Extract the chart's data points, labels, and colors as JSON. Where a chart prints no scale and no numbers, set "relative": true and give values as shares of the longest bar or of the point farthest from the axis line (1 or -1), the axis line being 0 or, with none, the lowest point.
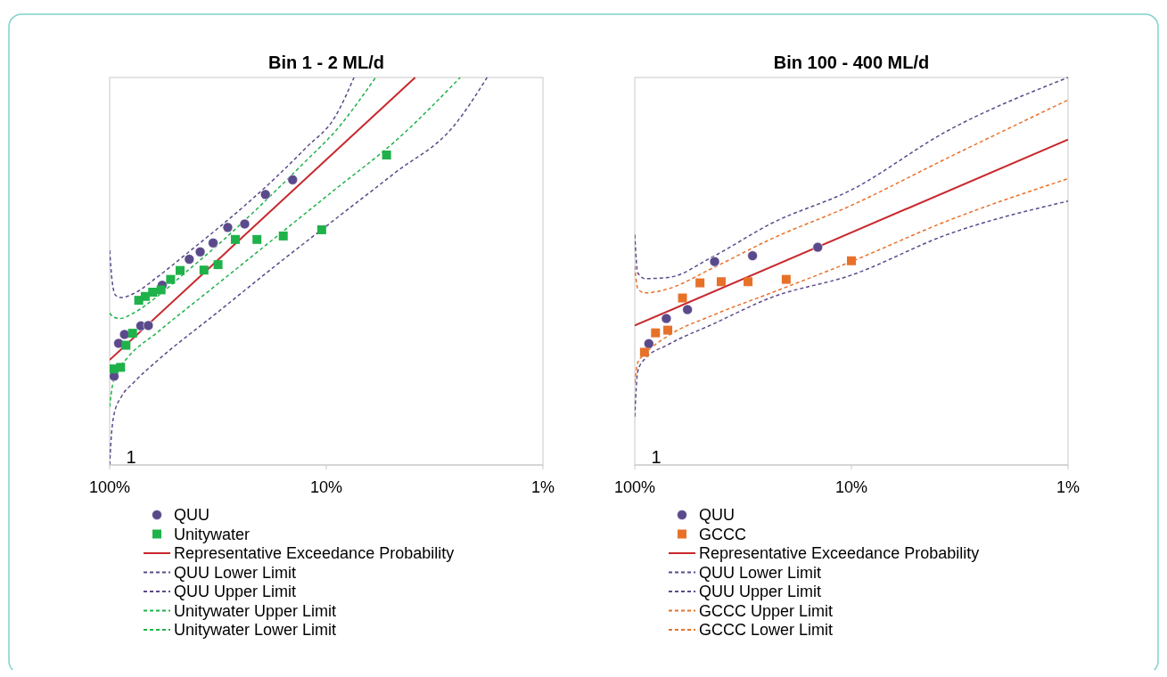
{
  "chart_data": [
    {
      "type": "scatter",
      "title": "Bin 1 - 2 ML/d",
      "relative": true,
      "log": "x",
      "xlim": [
        100,
        1
      ],
      "xticks": [
        {
          "value": 100,
          "label": "100%"
        },
        {
          "value": 10,
          "label": "10%"
        },
        {
          "value": 1,
          "label": "1%"
        }
      ],
      "legend": "bottom",
      "grid": false,
      "annotations": [
        "1"
      ],
      "series": [
        {
          "name": "QUU",
          "type": "scatter",
          "marker": "circle",
          "color": "#5b4a8b",
          "x": [
            95.4,
            90.9,
            85.4,
            71.8,
            66.3,
            57.2,
            42.9,
            38.2,
            33.3,
            28.5,
            23.8,
            19.1,
            14.3
          ],
          "values": [
            0.229,
            0.314,
            0.337,
            0.359,
            0.36,
            0.464,
            0.531,
            0.55,
            0.573,
            0.613,
            0.622,
            0.698,
            0.736
          ]
        },
        {
          "name": "Unitywater",
          "type": "scatter",
          "marker": "square",
          "color": "#1fb24a",
          "x": [
            95.4,
            89.0,
            84.1,
            78.4,
            73.4,
            68.5,
            63.3,
            57.9,
            52.3,
            47.3,
            36.7,
            31.6,
            26.3,
            20.9,
            15.8,
            10.5,
            5.27
          ],
          "values": [
            0.248,
            0.252,
            0.309,
            0.34,
            0.425,
            0.435,
            0.446,
            0.452,
            0.479,
            0.502,
            0.503,
            0.517,
            0.582,
            0.582,
            0.591,
            0.607,
            0.8
          ]
        },
        {
          "name": "Representative Exceedance Probability",
          "type": "line",
          "line_style": "solid",
          "marker": "none",
          "color": "#c8282d",
          "x": [
            100,
            3.89
          ],
          "values": [
            0.271,
            1
          ]
        },
        {
          "name": "QUU Lower Limit",
          "type": "line",
          "line_style": "dashed",
          "marker": "none",
          "color": "#5b4a8b",
          "x": [
            100,
            98.4,
            95.4,
            88.1,
            77.7,
            60.3,
            32.1,
            17.1,
            9.07,
            4.82,
            2.56,
            1.81
          ],
          "values": [
            0,
            0.069,
            0.131,
            0.177,
            0.212,
            0.269,
            0.392,
            0.515,
            0.635,
            0.754,
            0.877,
            1
          ]
        },
        {
          "name": "QUU Upper Limit",
          "type": "line",
          "line_style": "dashed",
          "marker": "none",
          "color": "#5b4a8b",
          "x": [
            100,
            97.5,
            93.9,
            88.1,
            77.7,
            60.3,
            44.0,
            32.1,
            23.4,
            17.1,
            12.4,
            9.07,
            7.45
          ],
          "values": [
            0.554,
            0.477,
            0.438,
            0.432,
            0.442,
            0.485,
            0.546,
            0.608,
            0.673,
            0.742,
            0.819,
            0.9,
            1
          ]
        },
        {
          "name": "Unitywater Upper Limit",
          "type": "line",
          "line_style": "dashed",
          "marker": "none",
          "color": "#1fb24a",
          "x": [
            100,
            95.4,
            89.5,
            77.7,
            60.3,
            44.0,
            32.1,
            23.4,
            17.1,
            12.4,
            9.07,
            5.92
          ],
          "values": [
            0.392,
            0.381,
            0.378,
            0.392,
            0.435,
            0.5,
            0.565,
            0.635,
            0.708,
            0.785,
            0.862,
            1
          ]
        },
        {
          "name": "Unitywater Lower Limit",
          "type": "line",
          "line_style": "dashed",
          "marker": "none",
          "color": "#1fb24a",
          "x": [
            100,
            96.9,
            90.9,
            82.7,
            60.3,
            32.1,
            17.1,
            9.07,
            4.82,
            2.41
          ],
          "values": [
            0.15,
            0.208,
            0.246,
            0.277,
            0.342,
            0.465,
            0.588,
            0.712,
            0.835,
            1
          ]
        }
      ]
    },
    {
      "type": "scatter",
      "title": "Bin 100 - 400 ML/d",
      "relative": true,
      "log": "x",
      "xlim": [
        100,
        1
      ],
      "xticks": [
        {
          "value": 100,
          "label": "100%"
        },
        {
          "value": 10,
          "label": "10%"
        },
        {
          "value": 1,
          "label": "1%"
        }
      ],
      "legend": "bottom",
      "grid": false,
      "annotations": [
        "1"
      ],
      "series": [
        {
          "name": "QUU",
          "type": "scatter",
          "marker": "circle",
          "color": "#5b4a8b",
          "x": [
            86.1,
            71.5,
            57.1,
            42.8,
            28.6,
            14.3
          ],
          "values": [
            0.313,
            0.378,
            0.401,
            0.525,
            0.54,
            0.562
          ]
        },
        {
          "name": "GCCC",
          "type": "scatter",
          "marker": "square",
          "color": "#e8712a",
          "x": [
            90.2,
            80.2,
            70.4,
            60.2,
            50.0,
            39.9,
            30.0,
            20.0,
            10.0
          ],
          "values": [
            0.291,
            0.341,
            0.348,
            0.431,
            0.47,
            0.473,
            0.473,
            0.479,
            0.527
          ]
        },
        {
          "name": "Representative Exceedance Probability",
          "type": "line",
          "line_style": "solid",
          "marker": "none",
          "color": "#c8282d",
          "x": [
            100,
            1
          ],
          "values": [
            0.36,
            0.84
          ]
        },
        {
          "name": "QUU Lower Limit",
          "type": "line",
          "line_style": "dashed",
          "marker": "none",
          "color": "#5b4a8b",
          "x": [
            100,
            96.9,
            91.1,
            69.9,
            43.8,
            23.5,
            10.0,
            3.64,
            1
          ],
          "values": [
            0.125,
            0.241,
            0.27,
            0.311,
            0.363,
            0.432,
            0.49,
            0.594,
            0.681
          ]
        },
        {
          "name": "QUU Upper Limit",
          "type": "line",
          "line_style": "dashed",
          "marker": "none",
          "color": "#5b4a8b",
          "x": [
            100,
            96.9,
            89.7,
            69.9,
            43.8,
            23.5,
            10.0,
            3.64,
            1
          ],
          "values": [
            0.594,
            0.496,
            0.481,
            0.484,
            0.537,
            0.623,
            0.71,
            0.861,
            1
          ]
        },
        {
          "name": "GCCC Upper Limit",
          "type": "line",
          "line_style": "dashed",
          "marker": "none",
          "color": "#e8712a",
          "x": [
            100,
            96.9,
            89.7,
            69.9,
            43.8,
            23.5,
            10.0,
            3.64,
            1
          ],
          "values": [
            0.513,
            0.455,
            0.444,
            0.455,
            0.508,
            0.583,
            0.67,
            0.791,
            0.942
          ]
        },
        {
          "name": "GCCC Lower Limit",
          "type": "line",
          "line_style": "dashed",
          "marker": "none",
          "color": "#e8712a",
          "x": [
            100,
            96.9,
            89.7,
            69.9,
            43.8,
            23.5,
            10.0,
            3.64,
            1
          ],
          "values": [
            0.212,
            0.264,
            0.287,
            0.334,
            0.386,
            0.444,
            0.525,
            0.629,
            0.739
          ]
        }
      ]
    }
  ]
}
